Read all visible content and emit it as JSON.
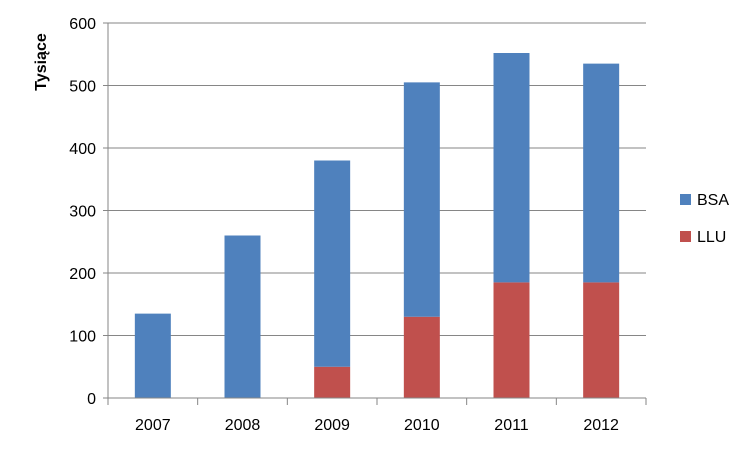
{
  "chart_data": {
    "type": "bar",
    "stacked": true,
    "categories": [
      "2007",
      "2008",
      "2009",
      "2010",
      "2011",
      "2012"
    ],
    "series": [
      {
        "name": "LLU",
        "color": "#C0504D",
        "values": [
          0,
          0,
          50,
          130,
          185,
          185
        ]
      },
      {
        "name": "BSA",
        "color": "#4F81BD",
        "values": [
          135,
          260,
          330,
          375,
          367,
          350
        ]
      }
    ],
    "ylabel": "Tysiące",
    "ylim": [
      0,
      600
    ],
    "yticks": [
      "0",
      "100",
      "200",
      "300",
      "400",
      "500",
      "600"
    ],
    "grid": true,
    "legend_position": "right",
    "legend_order": [
      "BSA",
      "LLU"
    ]
  }
}
